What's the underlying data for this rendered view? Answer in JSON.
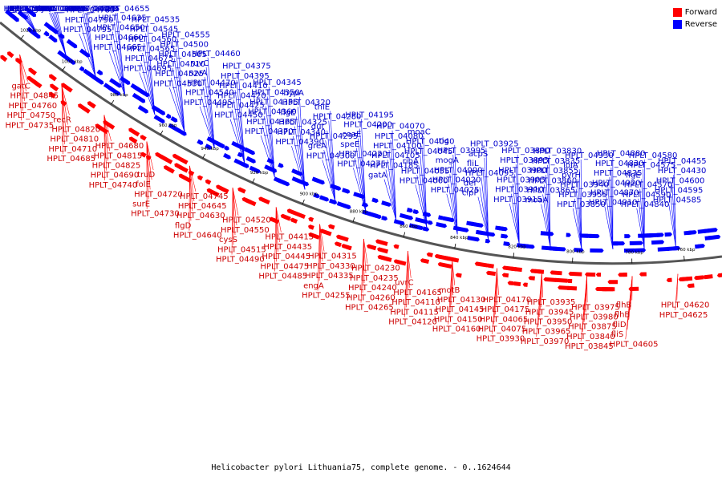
{
  "caption": "Helicobacter pylori Lithuania75, complete genome. - 0..1624644",
  "legend": [
    {
      "label": "Forward",
      "color": "#ff0000"
    },
    {
      "label": "Reverse",
      "color": "#0000ff"
    }
  ],
  "colors": {
    "forward_gene": "#ff0000",
    "reverse_gene": "#0000ff",
    "forward_text": "#cc0000",
    "reverse_text": "#0000cc",
    "backbone": "#555555"
  },
  "axis_ticks": [
    "1020 kbp",
    "1000 kbp",
    "980 kbp",
    "960 kbp",
    "940 kbp",
    "920 kbp",
    "900 kbp",
    "880 kbp",
    "860 kbp",
    "840 kbp",
    "820 kbp",
    "800 kbp",
    "780 kbp",
    "760 kbp"
  ],
  "reverse_labels": [
    "HPLT_05085",
    "HPLT_04980",
    "HPLT_04960",
    "HPLT_04915",
    "gpsA",
    "glyS",
    "glyQ",
    "HPLT_04885",
    "HPLT_04875",
    "HPLT_04855",
    "HPLT_04805",
    "HPLT_04800",
    "HPLT_04795",
    "HPLT_04790",
    "HPLT_04785",
    "HPLT_04755",
    "HPLT_04780",
    "HPLT_04775",
    "HPLT_04665",
    "HPLT_04660",
    "HPLT_04650",
    "HPLT_04635",
    "carB",
    "HPLT_04655",
    "HPLT_04695",
    "HPLT_04675",
    "HPLT_04565",
    "HPLT_04560",
    "HPLT_04545",
    "HPLT_04535",
    "HPLT_04530",
    "HPLT_04525",
    "HPLT_04510",
    "HPLT_04505",
    "HPLT_04500",
    "HPLT_04555",
    "HPLT_04495",
    "HPLT_04540",
    "HPLT_04470",
    "ruvA",
    "ruvC",
    "HPLT_04460",
    "HPLT_04450",
    "HPLT_04425",
    "HPLT_04420",
    "HPLT_04410",
    "HPLT_04395",
    "HPLT_04375",
    "HPLT_04370",
    "HPLT_04365",
    "HPLT_04360",
    "HPLT_04355",
    "HPLT_04350",
    "HPLT_04345",
    "HPLT_04390",
    "HPLT_04340",
    "HPLT_04325",
    "flgE",
    "HPLT_04320",
    "hypA",
    "HPLT_04300",
    "greA",
    "HPLT_04295",
    "dut",
    "HPLT_04280",
    "thiE",
    "HPLT_04275",
    "HPLT_04220",
    "speE",
    "coaE",
    "HPLT_04200",
    "HPLT_04195",
    "gatA",
    "HPLT_04185",
    "HPLT_04105",
    "HPLT_04100",
    "HPLT_04080",
    "HPLT_04070",
    "HPLT_04060",
    "HPLT_04055",
    "ribA",
    "HPLT_04045",
    "HPLT_04040",
    "moaC",
    "HPLT_04025",
    "HPLT_04020",
    "HPLT_04000",
    "mogA",
    "HPLT_03995",
    "tig",
    "clpP",
    "def",
    "HPLT_04095",
    "fliL",
    "acpS",
    "HPLT_03925",
    "HPLT_03915",
    "HPLT_03910",
    "HPLT_03905",
    "HPLT_03900",
    "HPLT_03895",
    "HPLT_03890",
    "moaA",
    "HPLT_03865",
    "HPLT_03860",
    "HPLT_03855",
    "HPLT_03835",
    "HPLT_03830",
    "HPLT_03850",
    "HPLT_03955",
    "HPLT_03940",
    "pyrH",
    "lolA",
    "HPLT_04930",
    "HPLT_04910",
    "HPLT_04870",
    "HPLT_04920",
    "HPLT_04835",
    "HPLT_04830",
    "HPLT_04880",
    "HPLT_04840",
    "HPLT_04590",
    "HPLT_04570",
    "flgE",
    "HPLT_04575",
    "HPLT_04580",
    "HPLT_04585",
    "HPLT_04595",
    "HPLT_04600",
    "HPLT_04430",
    "HPLT_04455"
  ],
  "forward_labels": [
    "gatC",
    "HPLT_04845",
    "HPLT_04760",
    "HPLT_04750",
    "HPLT_04735",
    "recR",
    "HPLT_04820",
    "HPLT_04810",
    "HPLT_04710",
    "HPLT_04685",
    "HPLT_04680",
    "HPLT_04815",
    "HPLT_04825",
    "HPLT_04690",
    "HPLT_04740",
    "truD",
    "folE",
    "HPLT_04720",
    "surE",
    "HPLT_04730",
    "HPLT_04745",
    "HPLT_04645",
    "HPLT_04630",
    "flgD",
    "HPLT_04640",
    "HPLT_04520",
    "HPLT_04550",
    "cysS",
    "HPLT_04515",
    "HPLT_04490",
    "HPLT_04415",
    "HPLT_04435",
    "HPLT_04445",
    "HPLT_04475",
    "HPLT_04485",
    "HPLT_04315",
    "HPLT_04330",
    "HPLT_04335",
    "engA",
    "HPLT_04255",
    "HPLT_04230",
    "HPLT_04235",
    "HPLT_04240",
    "HPLT_04260",
    "HPLT_04265",
    "uvrC",
    "HPLT_04165",
    "HPLT_04110",
    "HPLT_04115",
    "HPLT_04120",
    "motB",
    "HPLT_04130",
    "HPLT_04145",
    "HPLT_04150",
    "HPLT_04160",
    "HPLT_04170",
    "HPLT_04175",
    "HPLT_04065",
    "HPLT_04075",
    "HPLT_03930",
    "HPLT_03935",
    "HPLT_03945",
    "HPLT_03950",
    "HPLT_03965",
    "HPLT_03970",
    "HPLT_03975",
    "HPLT_03980",
    "HPLT_03875",
    "HPLT_03840",
    "HPLT_03845",
    "flhB",
    "flhB",
    "fliD",
    "fliS",
    "HPLT_04605",
    "HPLT_04620",
    "HPLT_04625"
  ]
}
